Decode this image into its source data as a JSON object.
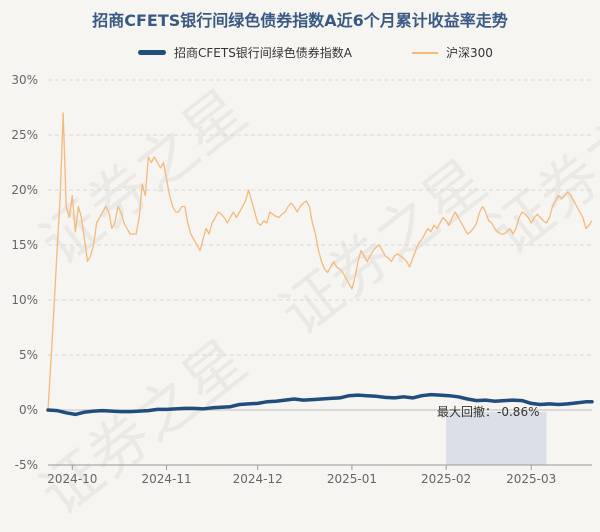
{
  "title": "招商CFETS银行间绿色债券指数A近6个月累计收益率走势",
  "legend": {
    "series1": "招商CFETS银行间绿色债券指数A",
    "series2": "沪深300"
  },
  "colors": {
    "fund": "#1f4e7e",
    "index": "#f5b97a",
    "grid": "#d9d9d9",
    "axis_text": "#666666",
    "drawdown_band": "#b8c8d8"
  },
  "chart_data": {
    "type": "line",
    "title": "招商CFETS银行间绿色债券指数A近6个月累计收益率走势",
    "ylim": [
      -5,
      30
    ],
    "yticks": [
      -5,
      0,
      5,
      10,
      15,
      20,
      25,
      30
    ],
    "ytick_labels": [
      "-5%",
      "0%",
      "5%",
      "10%",
      "15%",
      "20%",
      "25%",
      "30%"
    ],
    "xlim": [
      0,
      179
    ],
    "xtick_labels": [
      "2024-10",
      "2024-11",
      "2024-12",
      "2025-01",
      "2025-02",
      "2025-03"
    ],
    "xtick_positions": [
      8,
      39,
      69,
      100,
      131,
      159
    ],
    "series": [
      {
        "name": "招商CFETS银行间绿色债券指数A",
        "x": [
          0,
          3,
          6,
          9,
          12,
          15,
          18,
          21,
          24,
          27,
          30,
          33,
          36,
          39,
          42,
          45,
          48,
          51,
          54,
          57,
          60,
          63,
          66,
          69,
          72,
          75,
          78,
          81,
          84,
          87,
          90,
          93,
          96,
          99,
          102,
          105,
          108,
          111,
          114,
          117,
          120,
          123,
          126,
          129,
          132,
          135,
          138,
          141,
          144,
          147,
          150,
          153,
          156,
          159,
          162,
          165,
          168,
          171,
          174,
          177,
          179
        ],
        "values": [
          0,
          -0.05,
          -0.25,
          -0.4,
          -0.2,
          -0.1,
          -0.05,
          -0.1,
          -0.15,
          -0.15,
          -0.1,
          -0.05,
          0.05,
          0.05,
          0.1,
          0.15,
          0.15,
          0.1,
          0.2,
          0.25,
          0.3,
          0.5,
          0.55,
          0.6,
          0.75,
          0.8,
          0.9,
          1.0,
          0.9,
          0.95,
          1.0,
          1.05,
          1.1,
          1.3,
          1.35,
          1.3,
          1.25,
          1.15,
          1.1,
          1.2,
          1.1,
          1.3,
          1.4,
          1.35,
          1.3,
          1.2,
          1.0,
          0.85,
          0.9,
          0.8,
          0.85,
          0.9,
          0.85,
          0.6,
          0.5,
          0.55,
          0.5,
          0.55,
          0.65,
          0.75,
          0.75
        ]
      },
      {
        "name": "沪深300",
        "x": [
          0,
          1,
          2,
          3,
          4,
          5,
          6,
          7,
          8,
          9,
          10,
          11,
          12,
          13,
          14,
          15,
          16,
          17,
          18,
          19,
          20,
          21,
          22,
          23,
          24,
          25,
          26,
          27,
          28,
          29,
          30,
          31,
          32,
          33,
          34,
          35,
          36,
          37,
          38,
          39,
          40,
          41,
          42,
          43,
          44,
          45,
          46,
          47,
          48,
          49,
          50,
          51,
          52,
          53,
          54,
          55,
          56,
          57,
          58,
          59,
          60,
          61,
          62,
          63,
          64,
          65,
          66,
          67,
          68,
          69,
          70,
          71,
          72,
          73,
          74,
          75,
          76,
          77,
          78,
          79,
          80,
          81,
          82,
          83,
          84,
          85,
          86,
          87,
          88,
          89,
          90,
          91,
          92,
          93,
          94,
          95,
          96,
          97,
          98,
          99,
          100,
          101,
          102,
          103,
          104,
          105,
          106,
          107,
          108,
          109,
          110,
          111,
          112,
          113,
          114,
          115,
          116,
          117,
          118,
          119,
          120,
          121,
          122,
          123,
          124,
          125,
          126,
          127,
          128,
          129,
          130,
          131,
          132,
          133,
          134,
          135,
          136,
          137,
          138,
          139,
          140,
          141,
          142,
          143,
          144,
          145,
          146,
          147,
          148,
          149,
          150,
          151,
          152,
          153,
          154,
          155,
          156,
          157,
          158,
          159,
          160,
          161,
          162,
          163,
          164,
          165,
          166,
          167,
          168,
          169,
          170,
          171,
          172,
          173,
          174,
          175,
          176,
          177,
          178,
          179
        ],
        "values": [
          0,
          4.5,
          9.5,
          14.5,
          19.5,
          27,
          18.5,
          17.5,
          19.5,
          16.2,
          18.5,
          17.5,
          15.5,
          13.5,
          14.0,
          15.0,
          17.0,
          17.5,
          18.0,
          18.5,
          18.0,
          16.5,
          17.0,
          18.5,
          18.0,
          17.0,
          16.5,
          16.0,
          16.0,
          16.0,
          17.5,
          20.5,
          19.5,
          23.0,
          22.5,
          23.0,
          22.5,
          22.0,
          22.5,
          21.0,
          19.5,
          18.5,
          18.0,
          18.0,
          18.5,
          18.5,
          17.0,
          16.0,
          15.5,
          15.0,
          14.5,
          15.5,
          16.5,
          16.0,
          17.0,
          17.5,
          18.0,
          17.8,
          17.5,
          17.0,
          17.5,
          18.0,
          17.5,
          18.0,
          18.5,
          19.0,
          20.0,
          19.0,
          18.0,
          17.0,
          16.8,
          17.2,
          17.0,
          18.0,
          17.8,
          17.6,
          17.5,
          17.8,
          18.0,
          18.5,
          18.8,
          18.5,
          18.0,
          18.5,
          18.8,
          19.0,
          18.5,
          17.0,
          16.0,
          14.5,
          13.5,
          12.8,
          12.5,
          13.0,
          13.5,
          13.0,
          12.8,
          12.5,
          12.0,
          11.5,
          11.0,
          12.0,
          13.5,
          14.5,
          14.0,
          13.5,
          14.0,
          14.5,
          14.8,
          15.0,
          14.5,
          14.0,
          13.8,
          13.5,
          14.0,
          14.2,
          14.0,
          13.8,
          13.5,
          13.0,
          13.8,
          14.5,
          15.2,
          15.5,
          16.0,
          16.5,
          16.2,
          16.8,
          16.5,
          17.0,
          17.5,
          17.2,
          16.8,
          17.5,
          18.0,
          17.5,
          17.0,
          16.5,
          16.0,
          16.2,
          16.5,
          17.0,
          18.0,
          18.5,
          18.0,
          17.2,
          17.0,
          16.5,
          16.2,
          16.0,
          16.0,
          16.2,
          16.5,
          16.0,
          16.5,
          17.5,
          18.0,
          17.8,
          17.5,
          17.0,
          17.5,
          17.8,
          17.5,
          17.2,
          17.0,
          17.5,
          18.5,
          19.0,
          19.5,
          19.2,
          19.5,
          19.8,
          19.5,
          19.0,
          18.5,
          18.0,
          17.5,
          16.5,
          16.8,
          17.2
        ],
        "cleaned_note": ""
      }
    ],
    "annotation": {
      "label": "最大回撤：-0.86%",
      "x_start": 131,
      "x_end": 164
    }
  },
  "watermark": "证券之星"
}
